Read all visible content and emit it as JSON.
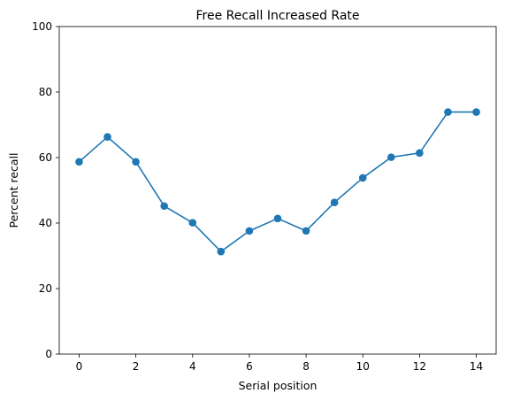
{
  "chart_data": {
    "type": "line",
    "title": "Free Recall Increased Rate",
    "xlabel": "Serial position",
    "ylabel": "Percent recall",
    "xlim": [
      -0.7,
      14.7
    ],
    "ylim": [
      0,
      100
    ],
    "xticks": [
      0,
      2,
      4,
      6,
      8,
      10,
      12,
      14
    ],
    "yticks": [
      0,
      20,
      40,
      60,
      80,
      100
    ],
    "grid": false,
    "marker": "circle",
    "color": "#1f77b4",
    "series": [
      {
        "x": [
          0,
          1,
          2,
          3,
          4,
          5,
          6,
          7,
          8,
          9,
          10,
          11,
          12,
          13,
          14
        ],
        "values": [
          58.7,
          66.3,
          58.7,
          45.2,
          40.1,
          31.3,
          37.6,
          41.4,
          37.6,
          46.3,
          53.8,
          60.1,
          61.4,
          73.9,
          73.9
        ]
      }
    ]
  }
}
